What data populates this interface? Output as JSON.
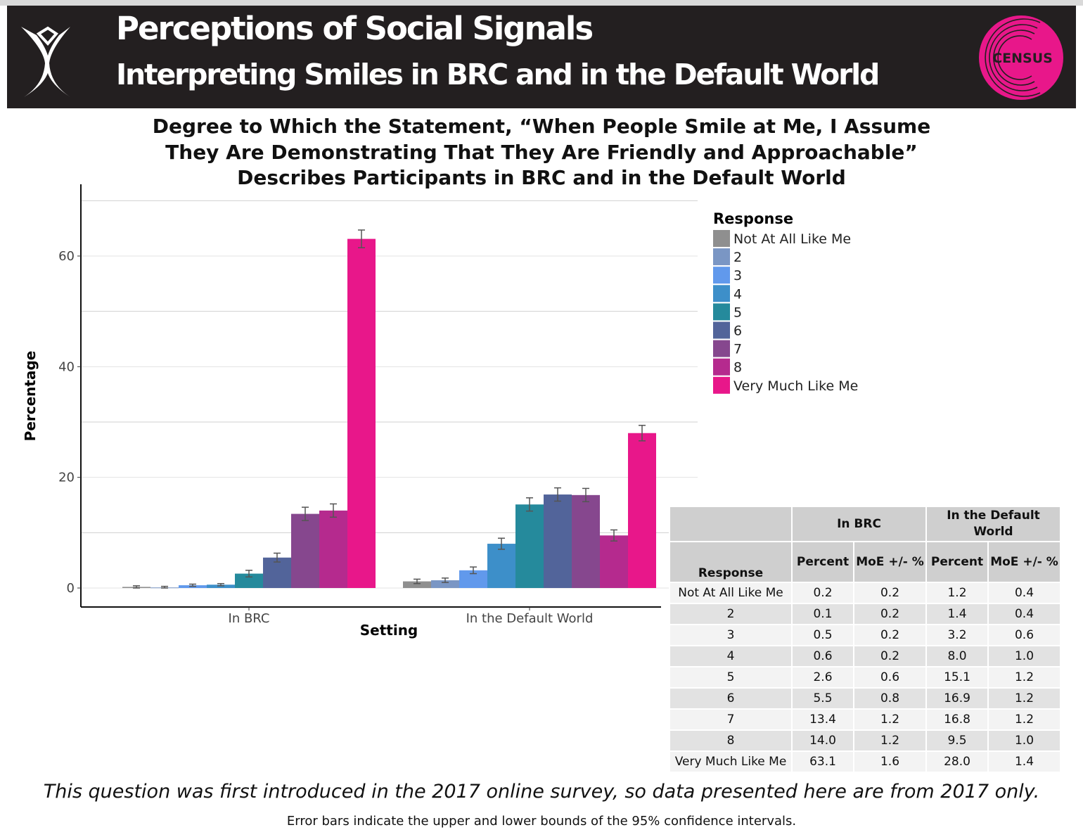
{
  "header": {
    "title": "Perceptions of Social Signals",
    "subtitle": "Interpreting Smiles in BRC and in the Default World",
    "logo_text": "CENSUS",
    "background": "#231f20",
    "logo_color": "#e8178a"
  },
  "chart_data": {
    "type": "bar",
    "title": "Degree to Which the Statement, “When People Smile at Me, I Assume They Are Demonstrating That They Are Friendly and Approachable” Describes Participants in BRC and in the Default World",
    "xlabel": "Setting",
    "ylabel": "Percentage",
    "ylim": [
      0,
      73
    ],
    "yticks": [
      "0",
      "20",
      "40",
      "60"
    ],
    "grid": true,
    "categories": [
      "In BRC",
      "In the Default World"
    ],
    "legend_title": "Response",
    "legend_position": "right",
    "series": [
      {
        "name": "Not At All Like Me",
        "color": "#8f8f8f",
        "values": [
          0.2,
          1.2
        ],
        "moe": [
          0.2,
          0.4
        ]
      },
      {
        "name": "2",
        "color": "#7a96c4",
        "values": [
          0.1,
          1.4
        ],
        "moe": [
          0.2,
          0.4
        ]
      },
      {
        "name": "3",
        "color": "#6199ec",
        "values": [
          0.5,
          3.2
        ],
        "moe": [
          0.2,
          0.6
        ]
      },
      {
        "name": "4",
        "color": "#3d8fc9",
        "values": [
          0.6,
          8.0
        ],
        "moe": [
          0.2,
          1.0
        ]
      },
      {
        "name": "5",
        "color": "#258a9c",
        "values": [
          2.6,
          15.1
        ],
        "moe": [
          0.6,
          1.2
        ]
      },
      {
        "name": "6",
        "color": "#52649a",
        "values": [
          5.5,
          16.9
        ],
        "moe": [
          0.8,
          1.2
        ]
      },
      {
        "name": "7",
        "color": "#86478e",
        "values": [
          13.4,
          16.8
        ],
        "moe": [
          1.2,
          1.2
        ]
      },
      {
        "name": "8",
        "color": "#b52a8e",
        "values": [
          14.0,
          9.5
        ],
        "moe": [
          1.2,
          1.0
        ]
      },
      {
        "name": "Very Much Like Me",
        "color": "#e8178a",
        "values": [
          63.1,
          28.0
        ],
        "moe": [
          1.6,
          1.4
        ]
      }
    ]
  },
  "table": {
    "group_headers": [
      "In BRC",
      "In the Default World"
    ],
    "col_headers": [
      "Response",
      "Percent",
      "MoE +/- %",
      "Percent",
      "MoE +/- %"
    ],
    "rows": [
      [
        "Not At All Like Me",
        "0.2",
        "0.2",
        "1.2",
        "0.4"
      ],
      [
        "2",
        "0.1",
        "0.2",
        "1.4",
        "0.4"
      ],
      [
        "3",
        "0.5",
        "0.2",
        "3.2",
        "0.6"
      ],
      [
        "4",
        "0.6",
        "0.2",
        "8.0",
        "1.0"
      ],
      [
        "5",
        "2.6",
        "0.6",
        "15.1",
        "1.2"
      ],
      [
        "6",
        "5.5",
        "0.8",
        "16.9",
        "1.2"
      ],
      [
        "7",
        "13.4",
        "1.2",
        "16.8",
        "1.2"
      ],
      [
        "8",
        "14.0",
        "1.2",
        "9.5",
        "1.0"
      ],
      [
        "Very Much Like Me",
        "63.1",
        "1.6",
        "28.0",
        "1.4"
      ]
    ]
  },
  "notes": {
    "primary": "This question was first introduced in the 2017 online survey, so  data presented here are from 2017 only.",
    "secondary": "Error bars indicate the upper and lower bounds of the 95% confidence intervals."
  }
}
